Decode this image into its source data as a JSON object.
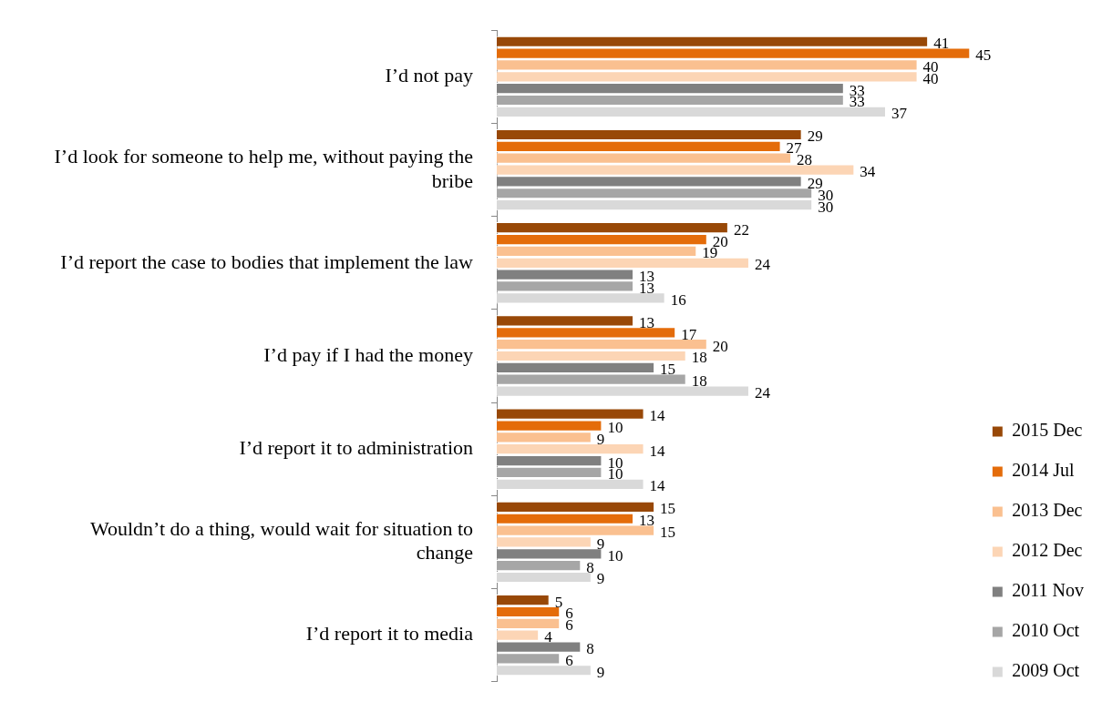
{
  "chart_data": {
    "type": "bar",
    "orientation": "horizontal",
    "data_labels": true,
    "grid": false,
    "legend": "bottom right",
    "categories": [
      "I’d not pay",
      "I’d look for someone to help me, without paying the bribe",
      "I’d report the case to bodies that implement the law",
      "I’d pay if I had the money",
      "I’d report it to administration",
      "Wouldn’t do a thing, would wait for situation to change",
      "I’d report it to media"
    ],
    "series": [
      {
        "name": "2015 Dec",
        "color": "#984807",
        "values": [
          41,
          29,
          22,
          13,
          14,
          15,
          5
        ]
      },
      {
        "name": "2014 Jul",
        "color": "#e46c0a",
        "values": [
          45,
          27,
          20,
          17,
          10,
          13,
          6
        ]
      },
      {
        "name": "2013 Dec",
        "color": "#fac090",
        "values": [
          40,
          28,
          19,
          20,
          9,
          15,
          6
        ]
      },
      {
        "name": "2012 Dec",
        "color": "#fcd5b5",
        "values": [
          40,
          34,
          24,
          18,
          14,
          9,
          4
        ]
      },
      {
        "name": "2011 Nov",
        "color": "#808080",
        "values": [
          33,
          29,
          13,
          15,
          10,
          10,
          8
        ]
      },
      {
        "name": "2010 Oct",
        "color": "#a6a6a6",
        "values": [
          33,
          30,
          13,
          18,
          10,
          8,
          6
        ]
      },
      {
        "name": "2009 Oct",
        "color": "#d9d9d9",
        "values": [
          37,
          30,
          16,
          24,
          14,
          9,
          9
        ]
      }
    ]
  }
}
